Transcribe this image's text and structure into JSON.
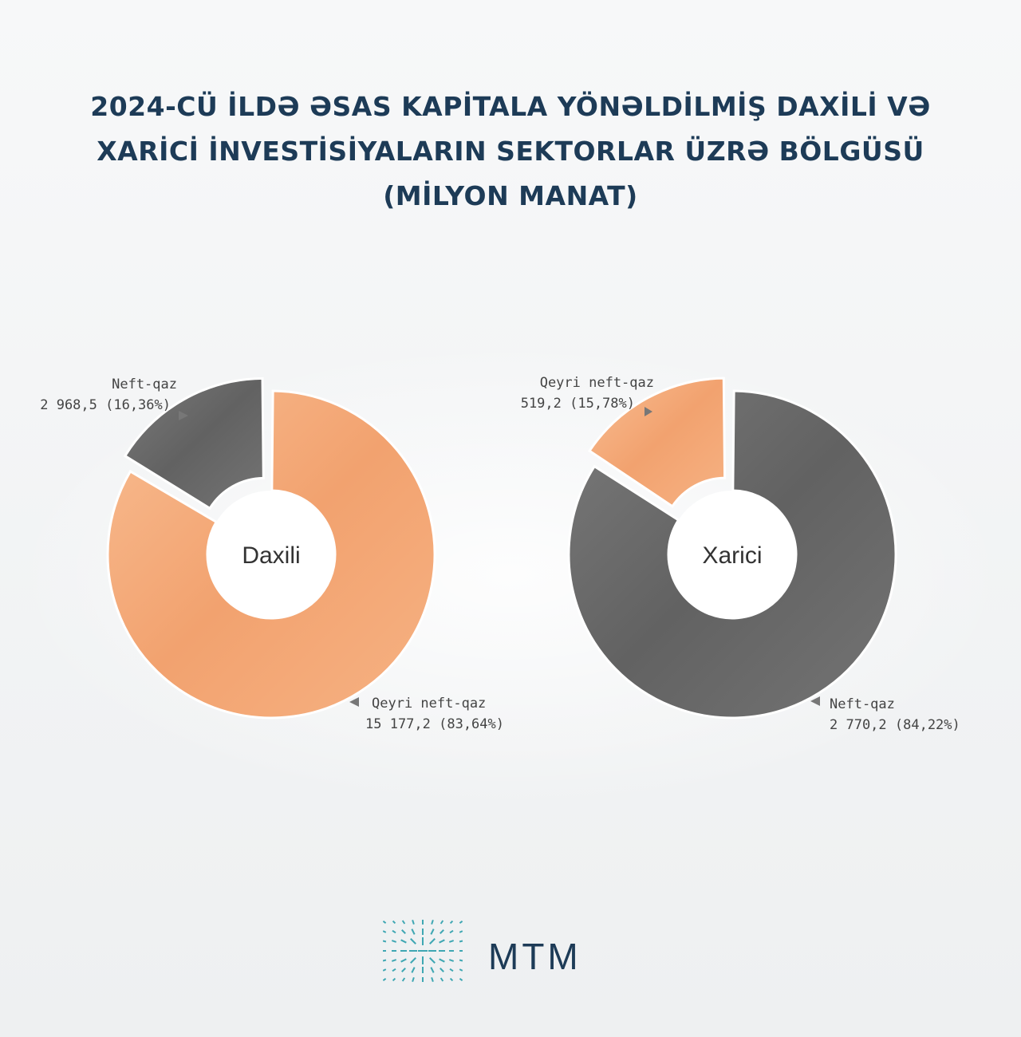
{
  "title": {
    "line1": "2024-CÜ İLDƏ ƏSAS KAPİTALA YÖNƏLDİLMİŞ DAXİLİ VƏ",
    "line2": "XARİCİ İNVESTİSİYALARIN SEKTORLAR ÜZRƏ BÖLGÜSÜ",
    "line3": "(MİLYON MANAT)"
  },
  "colors": {
    "orange": "#f4a875",
    "gray": "#6e6e6e",
    "title": "#1d3b57",
    "logo": "#3fa7b3"
  },
  "logo_text": "MTM",
  "chart_data": [
    {
      "type": "pie",
      "center_label": "Daxili",
      "slices": [
        {
          "name": "Neft-qaz",
          "value": 2968.5,
          "percent": 16.36,
          "value_label": "2 968,5 (16,36%)",
          "color": "#6e6e6e"
        },
        {
          "name": "Qeyri neft-qaz",
          "value": 15177.2,
          "percent": 83.64,
          "value_label": "15 177,2 (83,64%)",
          "color": "#f4a875"
        }
      ]
    },
    {
      "type": "pie",
      "center_label": "Xarici",
      "slices": [
        {
          "name": "Qeyri neft-qaz",
          "value": 519.2,
          "percent": 15.78,
          "value_label": "519,2 (15,78%)",
          "color": "#f4a875"
        },
        {
          "name": "Neft-qaz",
          "value": 2770.2,
          "percent": 84.22,
          "value_label": "2 770,2 (84,22%)",
          "color": "#6e6e6e"
        }
      ]
    }
  ]
}
